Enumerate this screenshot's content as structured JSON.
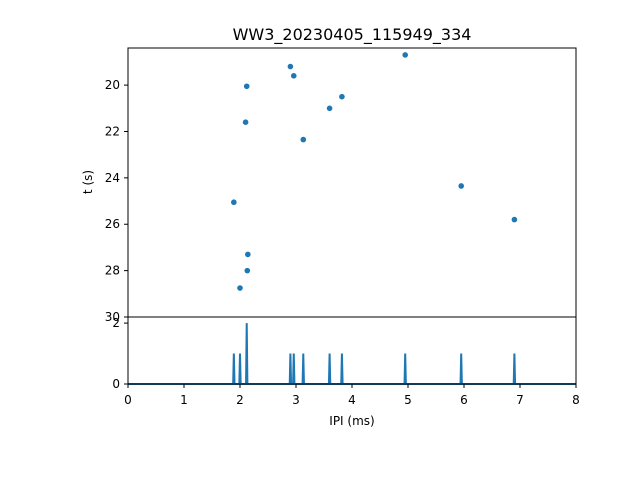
{
  "chart_data": [
    {
      "type": "scatter",
      "title": "WW3_20230405_115949_334",
      "ylabel": "t (s)",
      "xlabel": "",
      "xlim": [
        0,
        8
      ],
      "ylim": [
        30,
        18.4
      ],
      "y_inverted": true,
      "yticks": [
        20,
        22,
        24,
        26,
        28,
        30
      ],
      "color": "#1f77b4",
      "points": [
        {
          "x": 1.89,
          "y": 25.05
        },
        {
          "x": 2.0,
          "y": 28.75
        },
        {
          "x": 2.1,
          "y": 21.6
        },
        {
          "x": 2.12,
          "y": 20.05
        },
        {
          "x": 2.13,
          "y": 28.0
        },
        {
          "x": 2.14,
          "y": 27.3
        },
        {
          "x": 2.9,
          "y": 19.2
        },
        {
          "x": 2.96,
          "y": 19.6
        },
        {
          "x": 3.13,
          "y": 22.35
        },
        {
          "x": 3.6,
          "y": 21.0
        },
        {
          "x": 3.82,
          "y": 20.5
        },
        {
          "x": 4.95,
          "y": 18.7
        },
        {
          "x": 5.95,
          "y": 24.35
        },
        {
          "x": 6.9,
          "y": 25.8
        }
      ]
    },
    {
      "type": "line",
      "xlabel": "IPI (ms)",
      "ylabel": "",
      "xlim": [
        0,
        8
      ],
      "ylim": [
        0,
        2.2
      ],
      "xticks": [
        0,
        1,
        2,
        3,
        4,
        5,
        6,
        7,
        8
      ],
      "yticks": [
        0,
        2
      ],
      "color": "#1f77b4",
      "peaks": [
        {
          "x": 1.89,
          "height": 1
        },
        {
          "x": 2.0,
          "height": 1
        },
        {
          "x": 2.12,
          "height": 2
        },
        {
          "x": 2.9,
          "height": 1
        },
        {
          "x": 2.96,
          "height": 1
        },
        {
          "x": 3.13,
          "height": 1
        },
        {
          "x": 3.6,
          "height": 1
        },
        {
          "x": 3.82,
          "height": 1
        },
        {
          "x": 4.95,
          "height": 1
        },
        {
          "x": 5.95,
          "height": 1
        },
        {
          "x": 6.9,
          "height": 1
        }
      ]
    }
  ]
}
